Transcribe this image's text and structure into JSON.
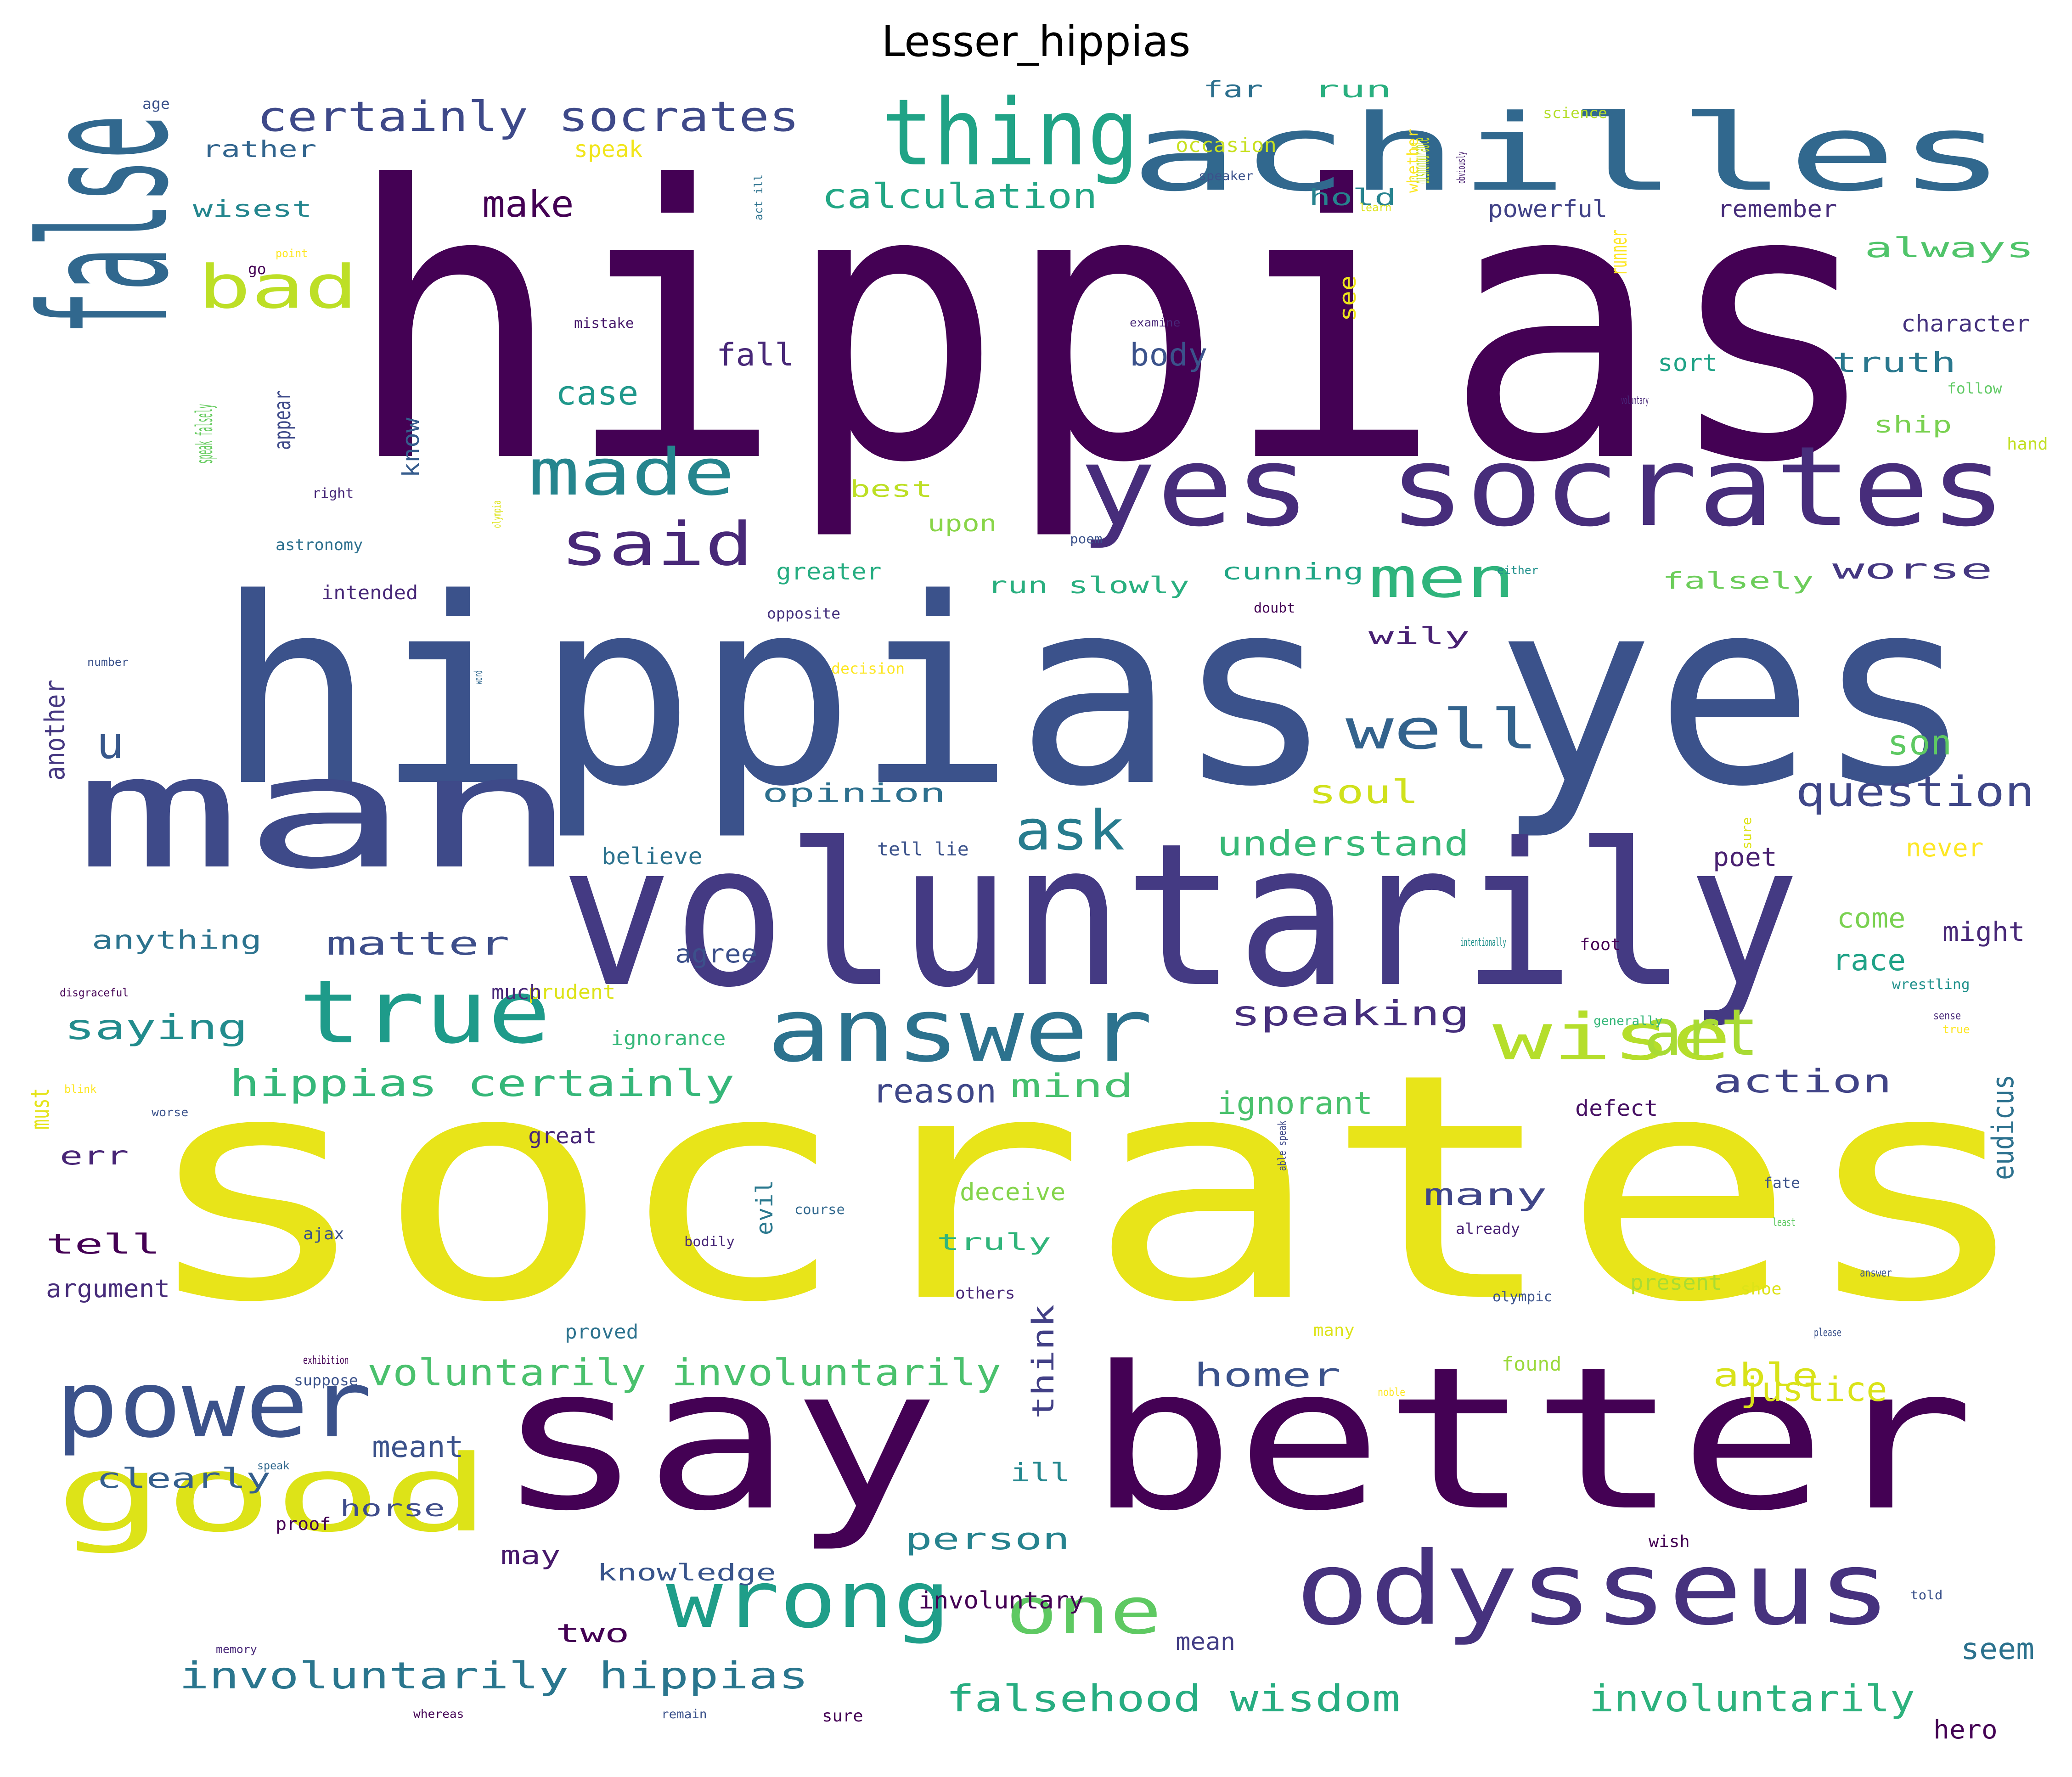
{
  "title": "Lesser_hippias",
  "words": [
    {
      "text": "hippias",
      "color": "#440154"
    },
    {
      "text": "socrates",
      "color": "#e8e419"
    },
    {
      "text": "hippias yes",
      "color": "#3b528b"
    },
    {
      "text": "say better",
      "color": "#440154"
    },
    {
      "text": "voluntarily",
      "color": "#443a83"
    },
    {
      "text": "man",
      "color": "#3e4a89"
    },
    {
      "text": "false",
      "color": "#31688e"
    },
    {
      "text": "yes socrates",
      "color": "#472d7b"
    },
    {
      "text": "achilles",
      "color": "#31688e"
    },
    {
      "text": "good",
      "color": "#dde318"
    },
    {
      "text": "odysseus",
      "color": "#46327e"
    },
    {
      "text": "thing",
      "color": "#20a386"
    },
    {
      "text": "power",
      "color": "#3b528b"
    },
    {
      "text": "true",
      "color": "#1e9b8a"
    },
    {
      "text": "answer",
      "color": "#2c728e"
    },
    {
      "text": "wrong",
      "color": "#1f9e89"
    },
    {
      "text": "wise",
      "color": "#b5de2b"
    },
    {
      "text": "art",
      "color": "#a8db34"
    },
    {
      "text": "one",
      "color": "#5ec962"
    },
    {
      "text": "made",
      "color": "#25858e"
    },
    {
      "text": "said",
      "color": "#482878"
    },
    {
      "text": "bad",
      "color": "#bddf26"
    },
    {
      "text": "men",
      "color": "#2fb47c"
    },
    {
      "text": "well",
      "color": "#33638d"
    },
    {
      "text": "ask",
      "color": "#287c8e"
    },
    {
      "text": "certainly socrates",
      "color": "#3e4989"
    },
    {
      "text": "question",
      "color": "#3f4788"
    },
    {
      "text": "involuntarily hippias",
      "color": "#2a768e"
    },
    {
      "text": "hippias certainly",
      "color": "#35b779"
    },
    {
      "text": "voluntarily involuntarily",
      "color": "#4ac16d"
    },
    {
      "text": "falsehood wisdom",
      "color": "#27ad81"
    },
    {
      "text": "involuntarily",
      "color": "#2db27d"
    },
    {
      "text": "calculation",
      "color": "#22a785"
    },
    {
      "text": "understand",
      "color": "#38b977"
    },
    {
      "text": "saying",
      "color": "#228c8d"
    },
    {
      "text": "speaking",
      "color": "#472f7d"
    },
    {
      "text": "action",
      "color": "#414487"
    },
    {
      "text": "mind",
      "color": "#46c06f"
    },
    {
      "text": "soul",
      "color": "#d0e11c"
    },
    {
      "text": "matter",
      "color": "#3d4e8a"
    },
    {
      "text": "homer",
      "color": "#3b528b"
    },
    {
      "text": "able",
      "color": "#d8e219"
    },
    {
      "text": "person",
      "color": "#26828e"
    },
    {
      "text": "many",
      "color": "#404688"
    },
    {
      "text": "think",
      "color": "#424086"
    },
    {
      "text": "eudicus",
      "color": "#2c718e"
    },
    {
      "text": "another",
      "color": "#453781"
    },
    {
      "text": "always",
      "color": "#50c46a"
    },
    {
      "text": "truth",
      "color": "#2a788e"
    },
    {
      "text": "worse",
      "color": "#453882"
    },
    {
      "text": "clearly",
      "color": "#355f8d"
    },
    {
      "text": "tell",
      "color": "#440154"
    },
    {
      "text": "must",
      "color": "#e5e419"
    },
    {
      "text": "opinion",
      "color": "#2d708e"
    },
    {
      "text": "anything",
      "color": "#2c738e"
    },
    {
      "text": "agree",
      "color": "#3c508b"
    },
    {
      "text": "err",
      "color": "#482576"
    },
    {
      "text": "ill",
      "color": "#24878e"
    },
    {
      "text": "may",
      "color": "#481a6c"
    },
    {
      "text": "two",
      "color": "#440154"
    },
    {
      "text": "knowledge",
      "color": "#39558c"
    },
    {
      "text": "horse",
      "color": "#3e4c8a"
    },
    {
      "text": "truly",
      "color": "#31b57b"
    },
    {
      "text": "evil",
      "color": "#2a788e"
    },
    {
      "text": "wily",
      "color": "#482173"
    },
    {
      "text": "know",
      "color": "#365c8d"
    },
    {
      "text": "appear",
      "color": "#3e4a89"
    },
    {
      "text": "speak falsely",
      "color": "#65cb5e"
    },
    {
      "text": "best",
      "color": "#bddf26"
    },
    {
      "text": "upon",
      "color": "#89d548"
    },
    {
      "text": "greater",
      "color": "#26ad81"
    },
    {
      "text": "run slowly",
      "color": "#29af7f"
    },
    {
      "text": "cunning",
      "color": "#21a685"
    },
    {
      "text": "falsely",
      "color": "#6ccd5a"
    },
    {
      "text": "ship",
      "color": "#7ad151"
    },
    {
      "text": "runner",
      "color": "#fde725"
    },
    {
      "text": "see",
      "color": "#efe51c"
    },
    {
      "text": "dishonourable",
      "color": "#c2df23"
    },
    {
      "text": "hold",
      "color": "#26828e"
    },
    {
      "text": "far",
      "color": "#2d708e"
    },
    {
      "text": "run",
      "color": "#29af7f"
    },
    {
      "text": "speak",
      "color": "#f1e51d"
    },
    {
      "text": "rather",
      "color": "#32658e"
    },
    {
      "text": "wisest",
      "color": "#24868e"
    },
    {
      "text": "make",
      "color": "#440154"
    },
    {
      "text": "act ill",
      "color": "#2c728e"
    },
    {
      "text": "u",
      "color": "#38588c"
    },
    {
      "text": "justice",
      "color": "#dae319"
    },
    {
      "text": "never",
      "color": "#fde725"
    },
    {
      "text": "might",
      "color": "#482878"
    },
    {
      "text": "ignorant",
      "color": "#4ac16d"
    },
    {
      "text": "reason",
      "color": "#3f4788"
    },
    {
      "text": "able speak",
      "color": "#3e4989"
    },
    {
      "text": "defect",
      "color": "#471164"
    },
    {
      "text": "powerful",
      "color": "#414287"
    },
    {
      "text": "remember",
      "color": "#472d7b"
    },
    {
      "text": "character",
      "color": "#46337f"
    },
    {
      "text": "whether",
      "color": "#fde725"
    },
    {
      "text": "occasion",
      "color": "#c8e020"
    },
    {
      "text": "case",
      "color": "#1f988b"
    },
    {
      "text": "body",
      "color": "#3b528b"
    },
    {
      "text": "fall",
      "color": "#482878"
    },
    {
      "text": "sort",
      "color": "#20a386"
    },
    {
      "text": "come",
      "color": "#7ad151"
    },
    {
      "text": "race",
      "color": "#1fa287"
    },
    {
      "text": "intended",
      "color": "#482878"
    },
    {
      "text": "tell lie",
      "color": "#3b528b"
    },
    {
      "text": "believe",
      "color": "#2c728e"
    },
    {
      "text": "poet",
      "color": "#481f70"
    },
    {
      "text": "sure",
      "color": "#dde318"
    },
    {
      "text": "ignorance",
      "color": "#35b779"
    },
    {
      "text": "deceive",
      "color": "#84d44b"
    },
    {
      "text": "already",
      "color": "#482173"
    },
    {
      "text": "present",
      "color": "#aadc32"
    },
    {
      "text": "found",
      "color": "#9bd93c"
    },
    {
      "text": "involuntary",
      "color": "#440154"
    },
    {
      "text": "mean",
      "color": "#433e85"
    },
    {
      "text": "seem",
      "color": "#2c728e"
    },
    {
      "text": "hero",
      "color": "#440154"
    },
    {
      "text": "great",
      "color": "#482878"
    },
    {
      "text": "argument",
      "color": "#472c7a"
    },
    {
      "text": "meant",
      "color": "#3b528b"
    },
    {
      "text": "science",
      "color": "#b5de2b"
    },
    {
      "text": "learn",
      "color": "#dde318"
    },
    {
      "text": "speaker",
      "color": "#3b528b"
    },
    {
      "text": "examine",
      "color": "#482878"
    },
    {
      "text": "mistake",
      "color": "#481a6c"
    },
    {
      "text": "age",
      "color": "#3b528b"
    },
    {
      "text": "obviously",
      "color": "#481f70"
    },
    {
      "text": "point",
      "color": "#fde725"
    },
    {
      "text": "go",
      "color": "#440154"
    },
    {
      "text": "right",
      "color": "#482878"
    },
    {
      "text": "astronomy",
      "color": "#2d708e"
    },
    {
      "text": "olympia",
      "color": "#dde318"
    },
    {
      "text": "poem",
      "color": "#3b528b"
    },
    {
      "text": "opposite",
      "color": "#46327e"
    },
    {
      "text": "doubt",
      "color": "#440154"
    },
    {
      "text": "either",
      "color": "#21918c"
    },
    {
      "text": "number",
      "color": "#3b528b"
    },
    {
      "text": "word",
      "color": "#31688e"
    },
    {
      "text": "decision",
      "color": "#fde725"
    },
    {
      "text": "son",
      "color": "#5ec962"
    },
    {
      "text": "hand",
      "color": "#c2df23"
    },
    {
      "text": "voluntary",
      "color": "#482878"
    },
    {
      "text": "follow",
      "color": "#5ec962"
    },
    {
      "text": "intentionally",
      "color": "#21918c"
    },
    {
      "text": "wrestling",
      "color": "#21918c"
    },
    {
      "text": "generally",
      "color": "#35b779"
    },
    {
      "text": "disgraceful",
      "color": "#440154"
    },
    {
      "text": "prudent",
      "color": "#dde318"
    },
    {
      "text": "much",
      "color": "#482878"
    },
    {
      "text": "blink",
      "color": "#fde725"
    },
    {
      "text": "worse",
      "color": "#3b528b"
    },
    {
      "text": "ajax",
      "color": "#3b528b"
    },
    {
      "text": "exhibition",
      "color": "#440154"
    },
    {
      "text": "suppose",
      "color": "#3b528b"
    },
    {
      "text": "proved",
      "color": "#2c728e"
    },
    {
      "text": "bodily",
      "color": "#482878"
    },
    {
      "text": "others",
      "color": "#482878"
    },
    {
      "text": "course",
      "color": "#31688e"
    },
    {
      "text": "olympic",
      "color": "#3b528b"
    },
    {
      "text": "shoe",
      "color": "#dde318"
    },
    {
      "text": "please",
      "color": "#3b528b"
    },
    {
      "text": "many",
      "color": "#dde318"
    },
    {
      "text": "speak",
      "color": "#31688e"
    },
    {
      "text": "proof",
      "color": "#440154"
    },
    {
      "text": "wish",
      "color": "#440154"
    },
    {
      "text": "told",
      "color": "#3b528b"
    },
    {
      "text": "memory",
      "color": "#482878"
    },
    {
      "text": "whereas",
      "color": "#440154"
    },
    {
      "text": "remain",
      "color": "#3b528b"
    },
    {
      "text": "sure",
      "color": "#440154"
    },
    {
      "text": "fate",
      "color": "#3b528b"
    },
    {
      "text": "least",
      "color": "#5ec962"
    },
    {
      "text": "answer",
      "color": "#3b528b"
    },
    {
      "text": "true",
      "color": "#fde725"
    },
    {
      "text": "sense",
      "color": "#482878"
    },
    {
      "text": "noble",
      "color": "#fde725"
    },
    {
      "text": "foot",
      "color": "#440154"
    }
  ]
}
